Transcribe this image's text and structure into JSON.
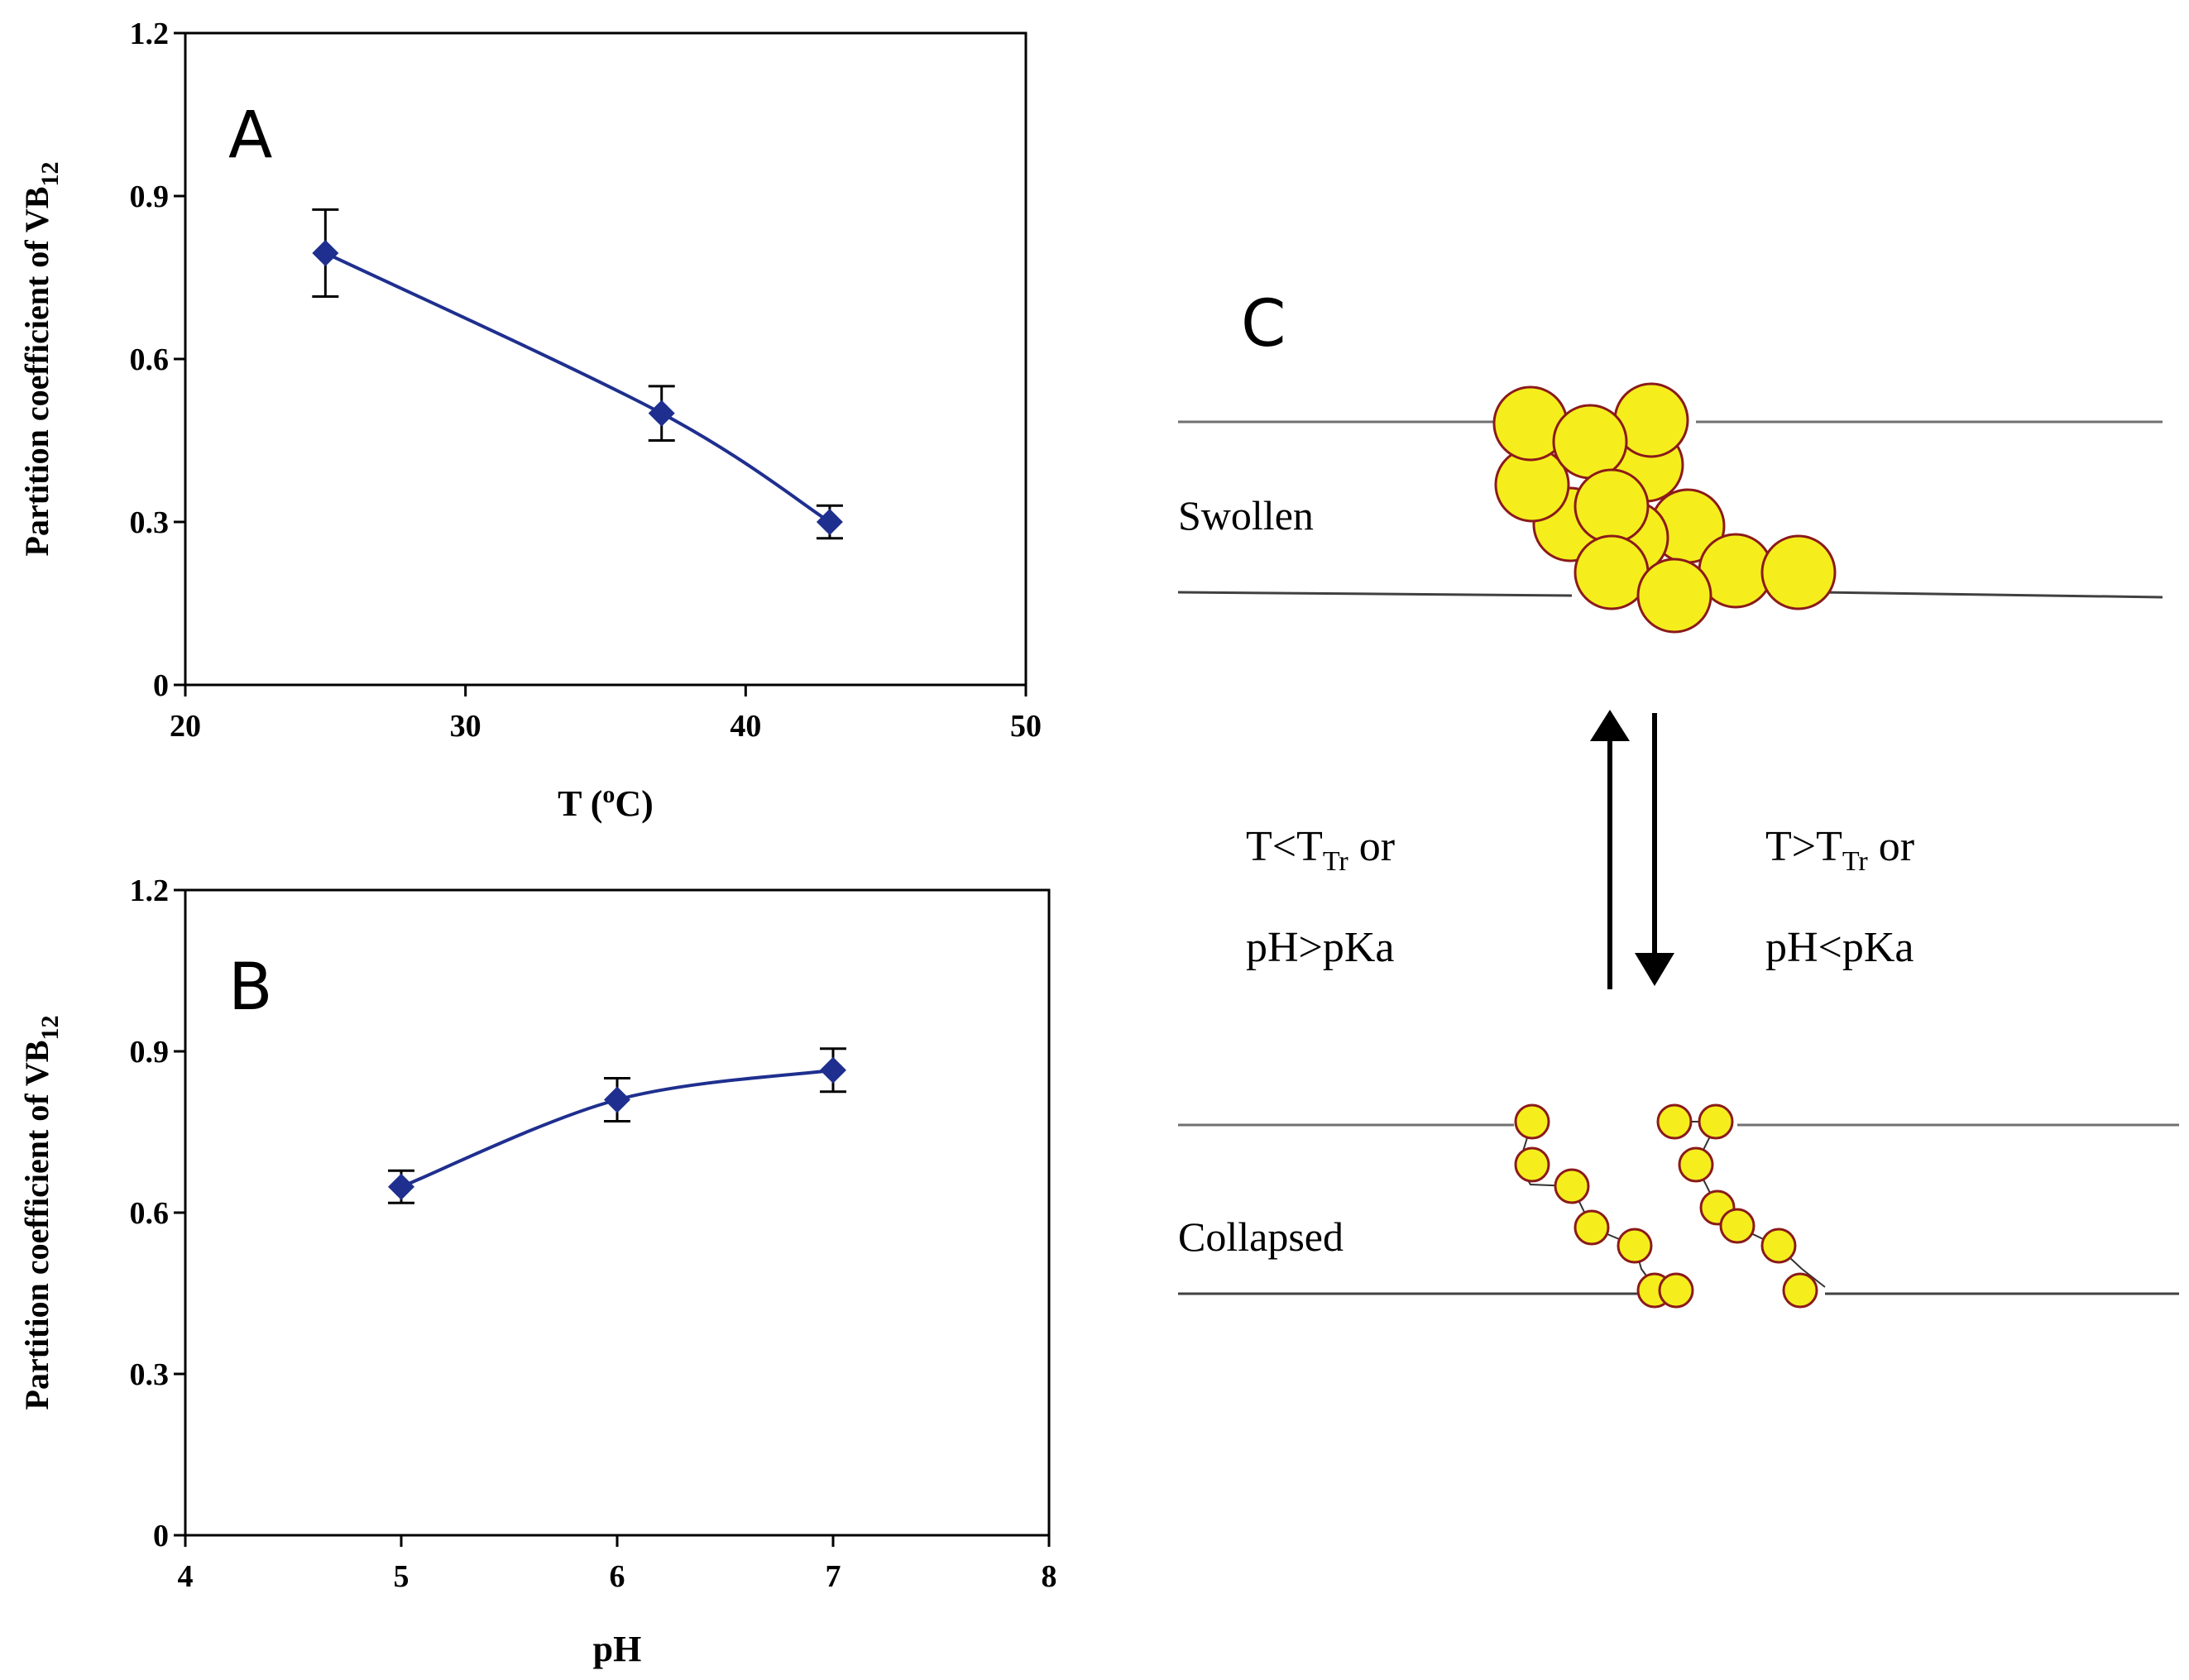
{
  "chart_data": [
    {
      "type": "line",
      "panel_label": "A",
      "xlabel": "T (oC)",
      "xlabel_parts": {
        "main": "T (",
        "sup": "o",
        "tail": "C)"
      },
      "ylabel": "Partition coefficient of VB12",
      "ylabel_parts": {
        "main": "Partition coefficient of VB",
        "sub": "12"
      },
      "xlim": [
        20,
        50
      ],
      "ylim": [
        0,
        1.2
      ],
      "xticks": [
        20,
        30,
        40,
        50
      ],
      "xtick_labels": [
        "20",
        "30",
        "40",
        "50"
      ],
      "yticks": [
        0,
        0.3,
        0.6,
        0.9,
        1.2
      ],
      "ytick_labels": [
        "0",
        "0.3",
        "0.6",
        "0.9",
        "1.2"
      ],
      "series": [
        {
          "name": "VB12 partition vs T",
          "x": [
            25,
            37,
            43
          ],
          "y": [
            0.795,
            0.5,
            0.3
          ],
          "error": [
            0.08,
            0.05,
            0.03
          ],
          "marker": "diamond",
          "color": "#1f2f8f"
        }
      ],
      "grid": false
    },
    {
      "type": "line",
      "panel_label": "B",
      "xlabel": "pH",
      "ylabel": "Partition coefficient of VB12",
      "ylabel_parts": {
        "main": "Partition coefficient of VB",
        "sub": "12"
      },
      "xlim": [
        4,
        8
      ],
      "ylim": [
        0,
        1.2
      ],
      "xticks": [
        4,
        5,
        6,
        7,
        8
      ],
      "xtick_labels": [
        "4",
        "5",
        "6",
        "7",
        "8"
      ],
      "yticks": [
        0,
        0.3,
        0.6,
        0.9,
        1.2
      ],
      "ytick_labels": [
        "0",
        "0.3",
        "0.6",
        "0.9",
        "1.2"
      ],
      "series": [
        {
          "name": "VB12 partition vs pH",
          "x": [
            5,
            6,
            7
          ],
          "y": [
            0.648,
            0.81,
            0.865
          ],
          "error": [
            0.03,
            0.04,
            0.04
          ],
          "marker": "diamond",
          "color": "#1f2f8f"
        }
      ],
      "grid": false
    }
  ],
  "diagram": {
    "panel_label": "C",
    "swollen_label": "Swollen",
    "collapsed_label": "Collapsed",
    "left_condition": {
      "line1_pre": "T<T",
      "line1_sub": "Tr",
      "line1_post": " or",
      "line2": "pH>pKa"
    },
    "right_condition": {
      "line1_pre": "T>T",
      "line1_sub": "Tr",
      "line1_post": " or",
      "line2": "pH<pKa"
    },
    "colors": {
      "bead_fill": "#f5ee1c",
      "bead_stroke": "#8b1a1a",
      "line": "#707070",
      "arrow": "#000000"
    }
  }
}
